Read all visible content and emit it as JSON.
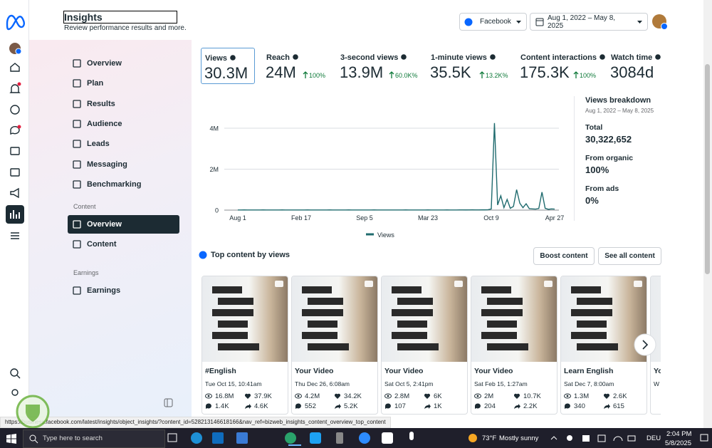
{
  "header": {
    "title": "Insights",
    "subtitle": "Review performance results and more.",
    "platform": "Facebook",
    "date_range": "Aug 1, 2022 – May 8, 2025"
  },
  "nav": {
    "items": [
      "Overview",
      "Plan",
      "Results",
      "Audience",
      "Leads",
      "Messaging",
      "Benchmarking"
    ],
    "sections": [
      {
        "heading": "Content",
        "items": [
          "Overview",
          "Content"
        ]
      },
      {
        "heading": "Earnings",
        "items": [
          "Earnings"
        ]
      }
    ]
  },
  "metrics": [
    {
      "label": "Views",
      "value": "30.3M"
    },
    {
      "label": "Reach",
      "value": "24M",
      "change": "100%"
    },
    {
      "label": "3-second views",
      "value": "13.9M",
      "change": "60.0K%"
    },
    {
      "label": "1-minute views",
      "value": "35.5K",
      "change": "13.2K%"
    },
    {
      "label": "Content interactions",
      "value": "175.3K",
      "change": "100%"
    },
    {
      "label": "Watch time",
      "value": "3084d"
    }
  ],
  "breakdown": {
    "title": "Views breakdown",
    "date_range": "Aug 1, 2022 – May 8, 2025",
    "rows": [
      {
        "label": "Total",
        "value": "30,322,652"
      },
      {
        "label": "From organic",
        "value": "100%"
      },
      {
        "label": "From ads",
        "value": "0%"
      }
    ]
  },
  "chart_data": {
    "type": "line",
    "categories": [
      "Aug 1",
      null,
      null,
      null,
      null,
      null,
      null,
      null,
      null,
      null,
      null,
      null,
      null,
      null,
      null,
      null,
      null,
      null,
      null,
      null,
      "Feb 17",
      null,
      null,
      null,
      null,
      null,
      null,
      null,
      null,
      null,
      null,
      null,
      null,
      null,
      null,
      null,
      null,
      null,
      null,
      null,
      "Sep 5",
      null,
      null,
      null,
      null,
      null,
      null,
      null,
      null,
      null,
      null,
      null,
      null,
      null,
      null,
      null,
      null,
      null,
      null,
      null,
      "Mar 23",
      null,
      null,
      null,
      null,
      null,
      null,
      null,
      null,
      null,
      null,
      null,
      null,
      null,
      null,
      null,
      null,
      null,
      null,
      null,
      "Oct 9",
      null,
      null,
      null,
      null,
      null,
      null,
      null,
      null,
      null,
      null,
      null,
      null,
      null,
      null,
      null,
      null,
      null,
      null,
      null,
      "Apr 27"
    ],
    "series": [
      {
        "name": "Views",
        "color": "#1f6b6e",
        "values": [
          8000,
          6000,
          9000,
          7000,
          5000,
          6000,
          8000,
          7000,
          9000,
          6000,
          7000,
          5000,
          6000,
          8000,
          9000,
          7000,
          6000,
          5000,
          7000,
          8000,
          6000,
          7000,
          9000,
          8000,
          6000,
          5000,
          7000,
          6000,
          8000,
          9000,
          7000,
          6000,
          5000,
          8000,
          7000,
          9000,
          6000,
          7000,
          8000,
          6000,
          5000,
          7000,
          6000,
          9000,
          8000,
          7000,
          6000,
          5000,
          8000,
          7000,
          6000,
          8000,
          7000,
          9000,
          6000,
          5000,
          7000,
          8000,
          6000,
          7000,
          9000,
          8000,
          7000,
          6000,
          8000,
          7000,
          9000,
          6000,
          7000,
          8000,
          10000,
          12000,
          9000,
          11000,
          14000,
          10000,
          12000,
          15000,
          13000,
          20000,
          60000,
          4250000,
          250000,
          700000,
          120000,
          520000,
          90000,
          180000,
          1000000,
          340000,
          120000,
          310000,
          70000,
          60000,
          50000,
          80000,
          880000,
          90000,
          40000,
          60000,
          50000
        ]
      }
    ],
    "ylim": [
      0,
      4500000
    ],
    "yticks": [
      0,
      {
        "value": 2000000,
        "label": "2M"
      },
      {
        "value": 4000000,
        "label": "4M"
      }
    ],
    "grid": true
  },
  "top_content": {
    "title": "Top content by views",
    "buttons": [
      "Boost content",
      "See all content"
    ],
    "cards": [
      {
        "title": "#English",
        "date": "Tue Oct 15, 10:41am",
        "views": "16.8M",
        "likes": "37.9K",
        "comments": "1.4K",
        "shares": "4.6K"
      },
      {
        "title": "Your Video",
        "date": "Thu Dec 26, 6:08am",
        "views": "4.2M",
        "likes": "34.2K",
        "comments": "552",
        "shares": "5.2K"
      },
      {
        "title": "Your Video",
        "date": "Sat Oct 5, 2:41pm",
        "views": "2.8M",
        "likes": "6K",
        "comments": "107",
        "shares": "1K"
      },
      {
        "title": "Your Video",
        "date": "Sat Feb 15, 1:27am",
        "views": "2M",
        "likes": "10.7K",
        "comments": "204",
        "shares": "2.2K"
      },
      {
        "title": "Learn English",
        "date": "Sat Dec 7, 8:00am",
        "views": "1.3M",
        "likes": "2.6K",
        "comments": "340",
        "shares": "615"
      },
      {
        "title": "Yo",
        "date": "W"
      }
    ]
  },
  "status_url": "https://business.facebook.com/latest/insights/object_insights/?content_id=528213146618166&nav_ref=bizweb_insights_content_overview_top_content",
  "taskbar": {
    "search": "Type here to search",
    "temperature": "73°F",
    "weather": "Mostly sunny",
    "language": "DEU",
    "time": "2:04 PM",
    "date": "5/8/2025"
  }
}
